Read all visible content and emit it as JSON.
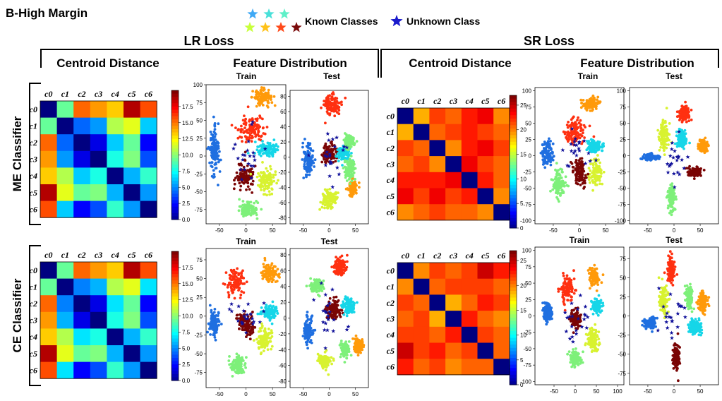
{
  "figure_title": "B-High Margin",
  "legend": {
    "known_label": "Known Classes",
    "unknown_label": "Unknown Class",
    "known_colors": [
      "#3fa9f5",
      "#49e0d9",
      "#5ff0c8",
      "#c8ff3c",
      "#ffc21a",
      "#ff4a1a",
      "#7a0a0a"
    ],
    "unknown_color": "#1a1acc"
  },
  "losses": [
    {
      "key": "lr",
      "label": "LR Loss"
    },
    {
      "key": "sr",
      "label": "SR Loss"
    }
  ],
  "column_headers": {
    "centroid": "Centroid Distance",
    "feature": "Feature Distribution",
    "train": "Train",
    "test": "Test"
  },
  "row_labels": [
    "ME Classifier",
    "CE Classifier"
  ],
  "class_labels": [
    "c0",
    "c1",
    "c2",
    "c3",
    "c4",
    "c5",
    "c6"
  ],
  "class_colors": [
    "#1f6fe0",
    "#16d6e8",
    "#7ef07a",
    "#d8f230",
    "#ff9a0a",
    "#ff3010",
    "#7a0505"
  ],
  "unknown_color": "#10109a",
  "chart_data": [
    {
      "type": "heatmap",
      "panel": "LR-ME centroid distance",
      "colormap": "jet",
      "labels": [
        "c0",
        "c1",
        "c2",
        "c3",
        "c4",
        "c5",
        "c6"
      ],
      "colorbar": {
        "min": 0.0,
        "max": 20,
        "ticks": [
          "0.0",
          "2.5",
          "5.0",
          "7.5",
          "10.0",
          "12.5",
          "15.0",
          "17.5"
        ]
      },
      "values": [
        [
          0,
          9.5,
          15.5,
          14.5,
          13.5,
          19,
          16
        ],
        [
          9.5,
          0,
          4.5,
          5.5,
          11,
          12,
          6.5
        ],
        [
          15.5,
          4.5,
          0,
          2,
          6.5,
          9.5,
          2.5
        ],
        [
          14.5,
          5.5,
          2,
          0,
          8,
          10,
          4
        ],
        [
          13.5,
          11,
          6.5,
          8,
          0,
          6,
          8.5
        ],
        [
          19,
          12,
          9.5,
          10,
          6,
          0,
          5.5
        ],
        [
          16,
          6.5,
          2.5,
          4,
          8.5,
          5.5,
          0
        ]
      ]
    },
    {
      "type": "scatter",
      "panel": "LR-ME train",
      "xticks": [
        "-50",
        "0",
        "50"
      ],
      "yticks": [
        "100",
        "75",
        "50",
        "25",
        "0",
        "-25",
        "-50",
        "-75"
      ],
      "clusters": [
        {
          "class": 0,
          "x": -60,
          "y": 5,
          "sx": 8,
          "sy": 28
        },
        {
          "class": 4,
          "x": 30,
          "y": 82,
          "sx": 14,
          "sy": 9
        },
        {
          "class": 5,
          "x": 10,
          "y": 38,
          "sx": 22,
          "sy": 14
        },
        {
          "class": 1,
          "x": 40,
          "y": 10,
          "sx": 18,
          "sy": 8
        },
        {
          "class": 6,
          "x": -2,
          "y": -28,
          "sx": 16,
          "sy": 16
        },
        {
          "class": 3,
          "x": 38,
          "y": -35,
          "sx": 14,
          "sy": 14
        },
        {
          "class": 2,
          "x": 5,
          "y": -75,
          "sx": 14,
          "sy": 9
        }
      ]
    },
    {
      "type": "scatter",
      "panel": "LR-ME test",
      "xticks": [
        "-50",
        "0",
        "50"
      ],
      "yticks": [
        "80",
        "60",
        "40",
        "20",
        "0",
        "-20",
        "-40",
        "-60",
        "-80"
      ],
      "clusters": [
        {
          "class": 5,
          "x": 5,
          "y": 70,
          "sx": 14,
          "sy": 12
        },
        {
          "class": 0,
          "x": -40,
          "y": -3,
          "sx": 7,
          "sy": 16
        },
        {
          "class": 6,
          "x": 0,
          "y": 5,
          "sx": 12,
          "sy": 10
        },
        {
          "class": 1,
          "x": 28,
          "y": 5,
          "sx": 10,
          "sy": 8
        },
        {
          "class": 2,
          "x": 38,
          "y": 20,
          "sx": 8,
          "sy": 8
        },
        {
          "class": 4,
          "x": 45,
          "y": -40,
          "sx": 7,
          "sy": 9
        },
        {
          "class": 3,
          "x": 0,
          "y": -55,
          "sx": 12,
          "sy": 10
        },
        {
          "class": 2,
          "x": 40,
          "y": -15,
          "sx": 8,
          "sy": 12
        }
      ]
    },
    {
      "type": "heatmap",
      "panel": "SR-ME centroid distance",
      "colormap": "jet",
      "labels": [
        "c0",
        "c1",
        "c2",
        "c3",
        "c4",
        "c5",
        "c6"
      ],
      "colorbar": {
        "min": 0,
        "max": 27,
        "ticks": [
          "0",
          "5",
          "10",
          "15",
          "20",
          "25"
        ]
      },
      "values": [
        [
          0,
          19,
          22,
          21,
          23,
          24,
          20
        ],
        [
          19,
          0,
          21,
          22,
          23,
          22,
          21
        ],
        [
          22,
          21,
          0,
          20,
          23,
          24,
          22
        ],
        [
          21,
          22,
          20,
          0,
          24,
          22,
          21
        ],
        [
          23,
          23,
          23,
          24,
          0,
          23,
          21
        ],
        [
          24,
          22,
          24,
          22,
          23,
          0,
          20
        ],
        [
          20,
          21,
          22,
          21,
          21,
          20,
          0
        ]
      ]
    },
    {
      "type": "scatter",
      "panel": "SR-ME train",
      "xticks": [
        "-50",
        "0",
        "50"
      ],
      "yticks": [
        "100",
        "75",
        "50",
        "25",
        "0",
        "-25",
        "-50",
        "-75",
        "-100"
      ],
      "clusters": [
        {
          "class": 4,
          "x": 20,
          "y": 80,
          "sx": 12,
          "sy": 8
        },
        {
          "class": 5,
          "x": -10,
          "y": 35,
          "sx": 16,
          "sy": 18
        },
        {
          "class": 1,
          "x": 30,
          "y": 15,
          "sx": 12,
          "sy": 8
        },
        {
          "class": 0,
          "x": -62,
          "y": 5,
          "sx": 8,
          "sy": 16
        },
        {
          "class": 3,
          "x": 30,
          "y": -25,
          "sx": 10,
          "sy": 16
        },
        {
          "class": 6,
          "x": 0,
          "y": -25,
          "sx": 10,
          "sy": 18
        },
        {
          "class": 2,
          "x": -40,
          "y": -45,
          "sx": 10,
          "sy": 18
        }
      ]
    },
    {
      "type": "scatter",
      "panel": "SR-ME test",
      "xticks": [
        "-50",
        "0",
        "50"
      ],
      "yticks": [
        "100",
        "75",
        "50",
        "25",
        "0",
        "-25",
        "-50",
        "-75",
        "-100"
      ],
      "clusters": [
        {
          "class": 5,
          "x": 20,
          "y": 65,
          "sx": 10,
          "sy": 10
        },
        {
          "class": 3,
          "x": -20,
          "y": 30,
          "sx": 8,
          "sy": 18
        },
        {
          "class": 1,
          "x": 15,
          "y": 25,
          "sx": 8,
          "sy": 10
        },
        {
          "class": 4,
          "x": 55,
          "y": 15,
          "sx": 7,
          "sy": 8
        },
        {
          "class": 0,
          "x": -45,
          "y": -2,
          "sx": 12,
          "sy": 5
        },
        {
          "class": 6,
          "x": 40,
          "y": -25,
          "sx": 10,
          "sy": 5
        },
        {
          "class": 2,
          "x": -5,
          "y": -65,
          "sx": 6,
          "sy": 16
        }
      ]
    },
    {
      "type": "heatmap",
      "panel": "LR-CE centroid distance",
      "colormap": "jet",
      "labels": [
        "c0",
        "c1",
        "c2",
        "c3",
        "c4",
        "c5",
        "c6"
      ],
      "colorbar": {
        "min": 0.0,
        "max": 20,
        "ticks": [
          "0.0",
          "2.5",
          "5.0",
          "7.5",
          "10.0",
          "12.5",
          "15.0",
          "17.5"
        ]
      },
      "values": [
        [
          0,
          9.5,
          15.5,
          14.5,
          13.5,
          19,
          16
        ],
        [
          9.5,
          0,
          5,
          6,
          11,
          12,
          7
        ],
        [
          15.5,
          5,
          0,
          2,
          7,
          9.5,
          2.5
        ],
        [
          14.5,
          6,
          2,
          0,
          8,
          10,
          4
        ],
        [
          13.5,
          11,
          7,
          8,
          0,
          6,
          8.5
        ],
        [
          19,
          12,
          9.5,
          10,
          6,
          0,
          5.5
        ],
        [
          16,
          7,
          2.5,
          4,
          8.5,
          5.5,
          0
        ]
      ]
    },
    {
      "type": "scatter",
      "panel": "LR-CE train",
      "title": "Train",
      "xticks": [
        "-50",
        "0",
        "50"
      ],
      "yticks": [
        "75",
        "50",
        "25",
        "0",
        "-25",
        "-50",
        "-75"
      ],
      "clusters": [
        {
          "class": 5,
          "x": -20,
          "y": 45,
          "sx": 14,
          "sy": 14
        },
        {
          "class": 4,
          "x": 45,
          "y": 58,
          "sx": 10,
          "sy": 10
        },
        {
          "class": 1,
          "x": 45,
          "y": 5,
          "sx": 12,
          "sy": 8
        },
        {
          "class": 0,
          "x": -60,
          "y": -10,
          "sx": 8,
          "sy": 14
        },
        {
          "class": 6,
          "x": 0,
          "y": -10,
          "sx": 12,
          "sy": 14
        },
        {
          "class": 3,
          "x": 35,
          "y": -30,
          "sx": 12,
          "sy": 14
        },
        {
          "class": 2,
          "x": -15,
          "y": -65,
          "sx": 12,
          "sy": 10
        }
      ]
    },
    {
      "type": "scatter",
      "panel": "LR-CE test",
      "title": "Test",
      "xticks": [
        "-50",
        "0",
        "50"
      ],
      "yticks": [
        "80",
        "60",
        "40",
        "20",
        "0",
        "-20",
        "-40",
        "-60",
        "-80"
      ],
      "clusters": [
        {
          "class": 5,
          "x": 20,
          "y": 65,
          "sx": 10,
          "sy": 10
        },
        {
          "class": 2,
          "x": -25,
          "y": 40,
          "sx": 10,
          "sy": 8
        },
        {
          "class": 6,
          "x": 10,
          "y": 10,
          "sx": 12,
          "sy": 10
        },
        {
          "class": 1,
          "x": 38,
          "y": 15,
          "sx": 10,
          "sy": 8
        },
        {
          "class": 0,
          "x": -40,
          "y": -15,
          "sx": 8,
          "sy": 14
        },
        {
          "class": 3,
          "x": -10,
          "y": -55,
          "sx": 10,
          "sy": 8
        },
        {
          "class": 4,
          "x": 55,
          "y": -35,
          "sx": 7,
          "sy": 8
        },
        {
          "class": 2,
          "x": 30,
          "y": -40,
          "sx": 7,
          "sy": 8
        }
      ]
    },
    {
      "type": "heatmap",
      "panel": "SR-CE centroid distance",
      "colormap": "jet",
      "labels": [
        "c0",
        "c1",
        "c2",
        "c3",
        "c4",
        "c5",
        "c6"
      ],
      "colorbar": {
        "min": 0,
        "max": 27,
        "ticks": [
          "0",
          "5",
          "10",
          "15",
          "20",
          "25"
        ]
      },
      "values": [
        [
          0,
          20,
          22,
          21,
          22,
          25,
          23
        ],
        [
          20,
          0,
          21,
          22,
          22,
          22,
          21
        ],
        [
          22,
          21,
          0,
          19,
          21,
          23,
          22
        ],
        [
          21,
          22,
          19,
          0,
          23,
          21,
          20
        ],
        [
          22,
          22,
          21,
          23,
          0,
          22,
          21
        ],
        [
          25,
          22,
          23,
          21,
          22,
          0,
          21
        ],
        [
          23,
          21,
          22,
          20,
          21,
          21,
          0
        ]
      ]
    },
    {
      "type": "scatter",
      "panel": "SR-CE train",
      "title": "Train",
      "xticks": [
        "-50",
        "0",
        "50",
        "100"
      ],
      "yticks": [
        "100",
        "75",
        "50",
        "25",
        "0",
        "-25",
        "-50",
        "-75",
        "-100"
      ],
      "clusters": [
        {
          "class": 5,
          "x": -20,
          "y": 40,
          "sx": 14,
          "sy": 16
        },
        {
          "class": 4,
          "x": 45,
          "y": 60,
          "sx": 10,
          "sy": 12
        },
        {
          "class": 1,
          "x": 50,
          "y": 15,
          "sx": 10,
          "sy": 8
        },
        {
          "class": 0,
          "x": -65,
          "y": 5,
          "sx": 8,
          "sy": 12
        },
        {
          "class": 6,
          "x": 0,
          "y": -5,
          "sx": 10,
          "sy": 10
        },
        {
          "class": 3,
          "x": 40,
          "y": -35,
          "sx": 12,
          "sy": 16
        },
        {
          "class": 2,
          "x": 0,
          "y": -65,
          "sx": 12,
          "sy": 12
        }
      ]
    },
    {
      "type": "scatter",
      "panel": "SR-CE test",
      "title": "Test",
      "xticks": [
        "-50",
        "0",
        "50"
      ],
      "yticks": [
        "75",
        "50",
        "25",
        "0",
        "-25",
        "-50",
        "-75"
      ],
      "clusters": [
        {
          "class": 5,
          "x": -5,
          "y": 60,
          "sx": 6,
          "sy": 14
        },
        {
          "class": 3,
          "x": -20,
          "y": 20,
          "sx": 8,
          "sy": 18
        },
        {
          "class": 2,
          "x": 30,
          "y": 25,
          "sx": 6,
          "sy": 14
        },
        {
          "class": 4,
          "x": 55,
          "y": 20,
          "sx": 7,
          "sy": 10
        },
        {
          "class": 0,
          "x": -45,
          "y": -10,
          "sx": 10,
          "sy": 6
        },
        {
          "class": 1,
          "x": 40,
          "y": -15,
          "sx": 10,
          "sy": 8
        },
        {
          "class": 6,
          "x": 5,
          "y": -55,
          "sx": 6,
          "sy": 14
        }
      ]
    }
  ]
}
